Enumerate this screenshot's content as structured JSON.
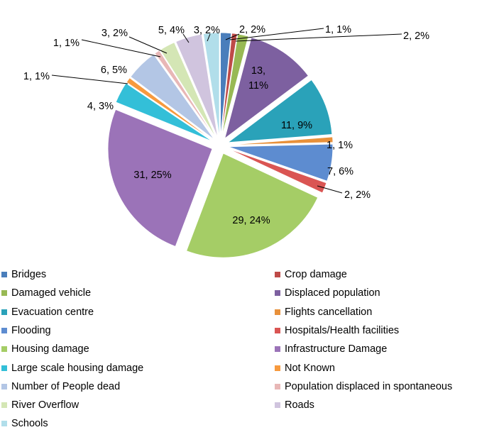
{
  "chart_data": {
    "type": "pie",
    "title": "",
    "legend_position": "bottom",
    "slices": [
      {
        "name": "Bridges",
        "value": 2,
        "label": "2, 2%",
        "color": "#4A7EBB"
      },
      {
        "name": "Crop damage",
        "value": 1,
        "label": "1, 1%",
        "color": "#BE4B48"
      },
      {
        "name": "Damaged vehicle",
        "value": 2,
        "label": "2, 2%",
        "color": "#98B954"
      },
      {
        "name": "Displaced population",
        "value": 13,
        "label": "13, 11%",
        "color": "#7D60A0"
      },
      {
        "name": "Evacuation centre",
        "value": 11,
        "label": "11, 9%",
        "color": "#2AA2B9"
      },
      {
        "name": "Flights cancellation",
        "value": 1,
        "label": "1, 1%",
        "color": "#E8913B"
      },
      {
        "name": "Flooding",
        "value": 7,
        "label": "7, 6%",
        "color": "#5D8CD0"
      },
      {
        "name": "Hospitals/Health facilities",
        "value": 2,
        "label": "2, 2%",
        "color": "#DA5553"
      },
      {
        "name": "Housing damage",
        "value": 29,
        "label": "29, 24%",
        "color": "#A5CD66"
      },
      {
        "name": "Infrastructure Damage",
        "value": 31,
        "label": "31, 25%",
        "color": "#9B73B8"
      },
      {
        "name": "Large scale housing damage",
        "value": 4,
        "label": "4, 3%",
        "color": "#33BFD8"
      },
      {
        "name": "Not Known",
        "value": 1,
        "label": "1, 1%",
        "color": "#F79A3E"
      },
      {
        "name": "Number of People dead",
        "value": 6,
        "label": "6, 5%",
        "color": "#B3C6E5"
      },
      {
        "name": "Population displaced in spontaneous",
        "value": 1,
        "label": "1, 1%",
        "color": "#E8B7B6"
      },
      {
        "name": "River Overflow",
        "value": 3,
        "label": "3, 2%",
        "color": "#D4E6B5"
      },
      {
        "name": "Roads",
        "value": 5,
        "label": "5, 4%",
        "color": "#D0C4DE"
      },
      {
        "name": "Schools",
        "value": 3,
        "label": "3, 2%",
        "color": "#B1DEEA"
      }
    ]
  }
}
